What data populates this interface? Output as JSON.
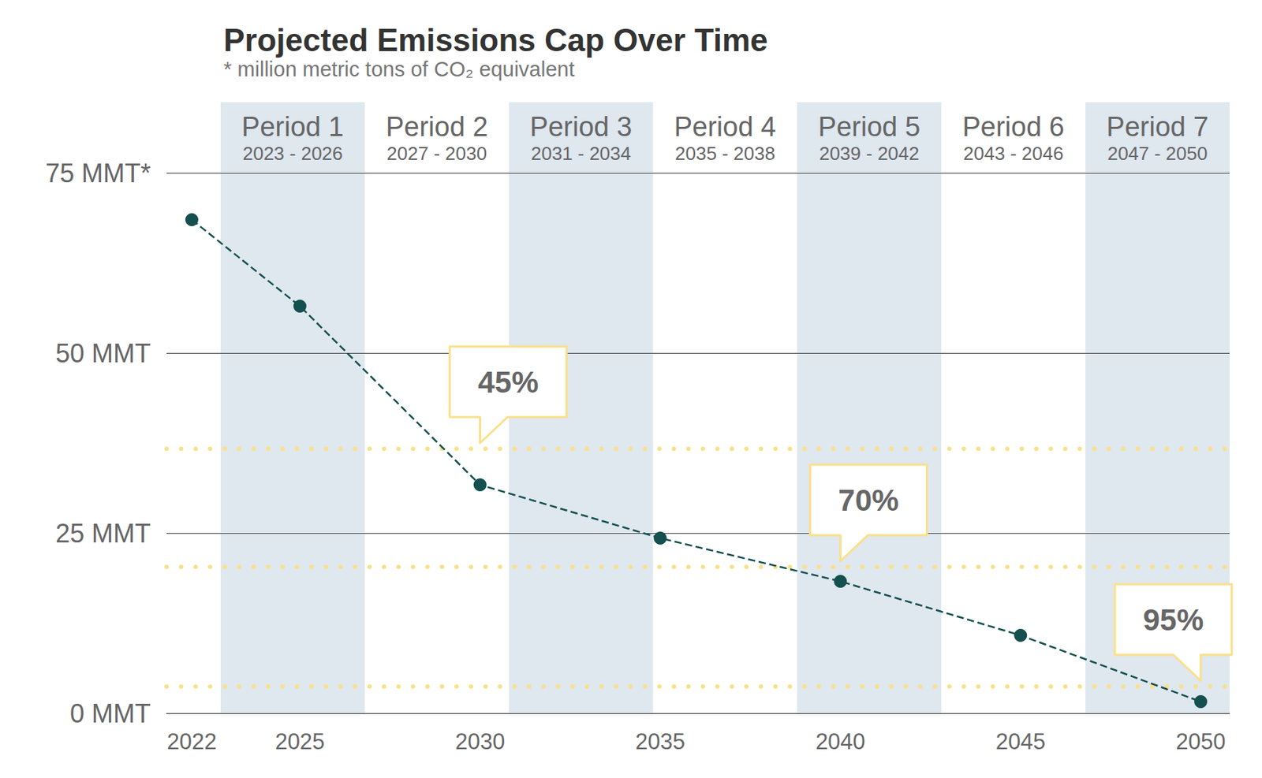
{
  "chart_data": {
    "type": "line",
    "title": "Projected Emissions Cap Over Time",
    "subtitle": "* million metric tons of CO₂ equivalent",
    "x": [
      2022,
      2025,
      2030,
      2035,
      2040,
      2045,
      2050
    ],
    "values": [
      68.5,
      56.5,
      31.7,
      24.3,
      18.3,
      10.8,
      1.6
    ],
    "color": "#13504f",
    "line_style": "dashed",
    "marker": "circle",
    "xlim": [
      2021.3,
      2050.8
    ],
    "xticks": [
      2022,
      2025,
      2030,
      2035,
      2040,
      2045,
      2050
    ],
    "ylim": [
      0,
      75
    ],
    "yticks": [
      {
        "value": 0,
        "label": "0 MMT"
      },
      {
        "value": 25,
        "label": "25 MMT"
      },
      {
        "value": 50,
        "label": "50 MMT"
      },
      {
        "value": 75,
        "label": "75 MMT*"
      }
    ],
    "grid": true,
    "periods": [
      {
        "name": "Period 1",
        "years": "2023 - 2026",
        "start": 2022.8,
        "end": 2026.8
      },
      {
        "name": "Period 2",
        "years": "2027 - 2030",
        "start": 2026.8,
        "end": 2030.8
      },
      {
        "name": "Period 3",
        "years": "2031 - 2034",
        "start": 2030.8,
        "end": 2034.8
      },
      {
        "name": "Period 4",
        "years": "2035 - 2038",
        "start": 2034.8,
        "end": 2038.8
      },
      {
        "name": "Period 5",
        "years": "2039 - 2042",
        "start": 2038.8,
        "end": 2042.8
      },
      {
        "name": "Period 6",
        "years": "2043 - 2046",
        "start": 2042.8,
        "end": 2046.8
      },
      {
        "name": "Period 7",
        "years": "2047 - 2050",
        "start": 2046.8,
        "end": 2050.8
      }
    ],
    "targets": [
      {
        "label": "45%",
        "x": 2030,
        "value": 36.7
      },
      {
        "label": "70%",
        "x": 2040,
        "value": 20.3
      },
      {
        "label": "95%",
        "x": 2050,
        "value": 3.7
      }
    ]
  }
}
